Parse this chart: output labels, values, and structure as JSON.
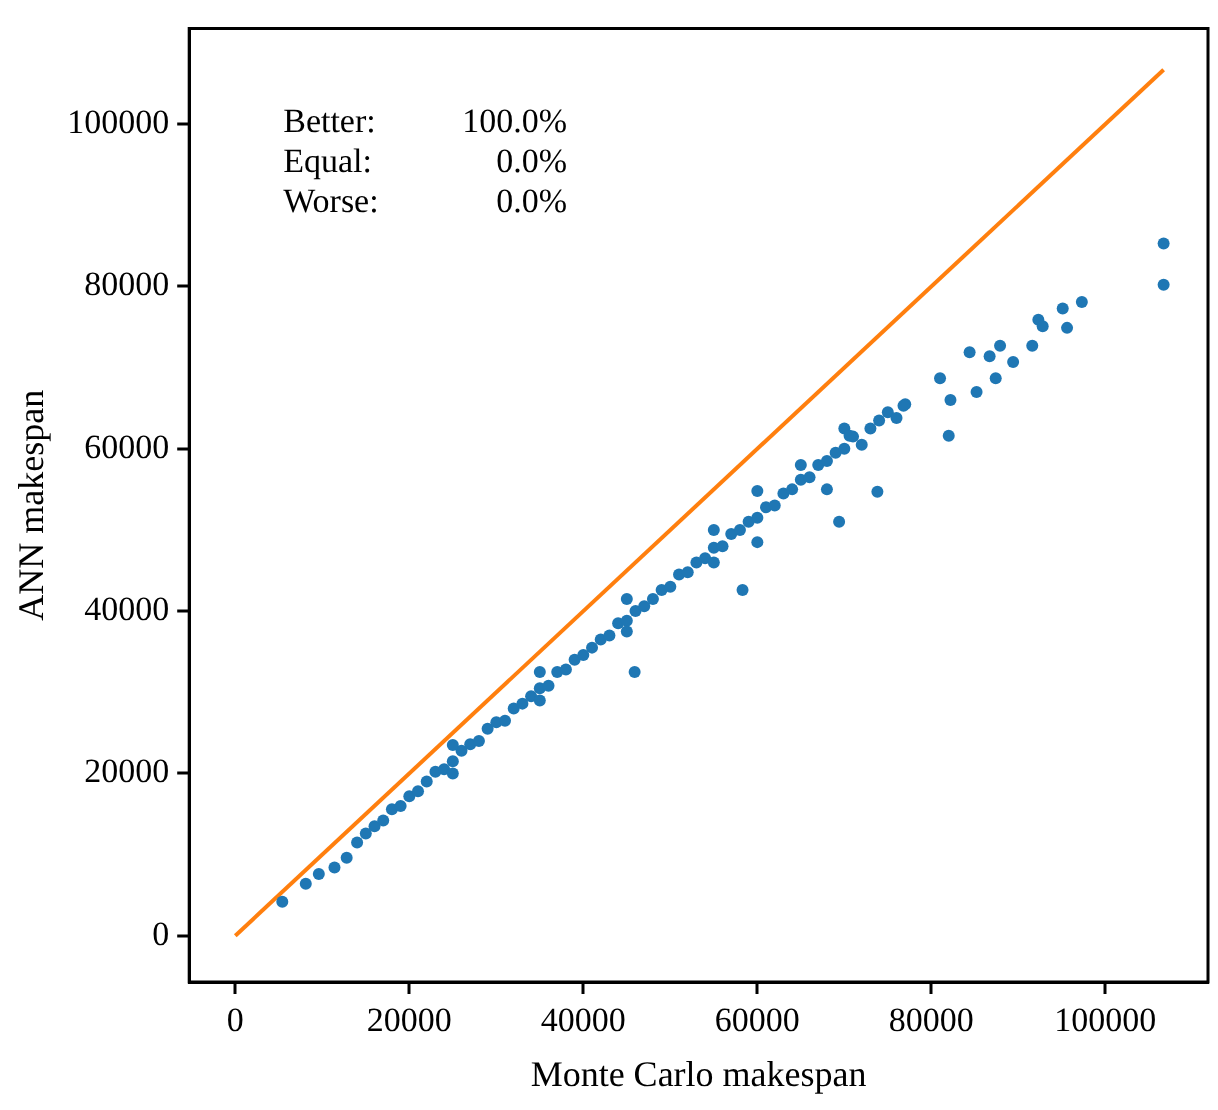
{
  "chart_data": {
    "type": "scatter",
    "xlabel": "Monte Carlo makespan",
    "ylabel": "ANN makespan",
    "annotations": [
      "Better: 100.0%",
      "Equal: 0.0%",
      "Worse: 0.0%"
    ],
    "xlim": [
      -5300,
      111800
    ],
    "ylim": [
      -5700,
      111800
    ],
    "xticks": [
      0,
      20000,
      40000,
      60000,
      80000,
      100000
    ],
    "yticks": [
      0,
      20000,
      40000,
      60000,
      80000,
      100000
    ],
    "grid": false,
    "legend": false,
    "marker": "circle",
    "series": [
      {
        "type": "scatter",
        "color": "#1f77b4",
        "x": [
          5400,
          8100,
          9600,
          11400,
          12800,
          14000,
          15000,
          16000,
          17000,
          18000,
          19000,
          20000,
          21000,
          22000,
          23000,
          24000,
          25000,
          26000,
          27000,
          28000,
          29000,
          30000,
          31000,
          32000,
          33000,
          34000,
          35000,
          36000,
          37000,
          38000,
          39000,
          40000,
          41000,
          42000,
          43000,
          44000,
          45000,
          46000,
          47000,
          48000,
          49000,
          50000,
          51000,
          52000,
          53000,
          54000,
          55000,
          56000,
          57000,
          58000,
          59000,
          60000,
          61000,
          62000,
          63000,
          64000,
          65000,
          66000,
          67000,
          68000,
          69000,
          70000,
          71000,
          72000,
          73000,
          74000,
          75000,
          76000,
          77000,
          25000,
          25000,
          35000,
          35000,
          45000,
          45000,
          55000,
          55000,
          60000,
          60000,
          45900,
          58300,
          69400,
          65000,
          70000,
          68000,
          70600,
          73800,
          76800,
          81000,
          82000,
          82200,
          84400,
          85200,
          86700,
          87400,
          87900,
          89400,
          91600,
          92300,
          92800,
          95100,
          95600,
          97300,
          106700,
          106700
        ],
        "values": [
          4200,
          6400,
          7600,
          8400,
          9600,
          11500,
          12600,
          13500,
          14200,
          15600,
          16000,
          17200,
          17800,
          19000,
          20200,
          20500,
          21500,
          22800,
          23600,
          24000,
          25500,
          26300,
          26500,
          28000,
          28600,
          29500,
          30500,
          30800,
          32500,
          32800,
          34000,
          34600,
          35500,
          36500,
          37000,
          38500,
          38800,
          40000,
          40600,
          41500,
          42600,
          43000,
          44500,
          44800,
          46000,
          46500,
          47800,
          48000,
          49500,
          50000,
          51000,
          51500,
          52800,
          53000,
          54500,
          55000,
          56200,
          56500,
          58000,
          58500,
          59500,
          60000,
          61500,
          60500,
          62500,
          63500,
          64500,
          63800,
          65500,
          23500,
          20000,
          32500,
          29000,
          41500,
          37500,
          50000,
          46000,
          54800,
          48500,
          32500,
          42600,
          51000,
          58000,
          62500,
          55000,
          61600,
          54700,
          65300,
          68700,
          61600,
          66000,
          71900,
          67000,
          71400,
          68700,
          72700,
          70700,
          72700,
          75900,
          75100,
          77300,
          74900,
          78100,
          85300,
          80200
        ]
      },
      {
        "type": "line",
        "color": "#ff7f0e",
        "marker": "none",
        "x": [
          0,
          106700
        ],
        "values": [
          0,
          106700
        ]
      }
    ]
  }
}
